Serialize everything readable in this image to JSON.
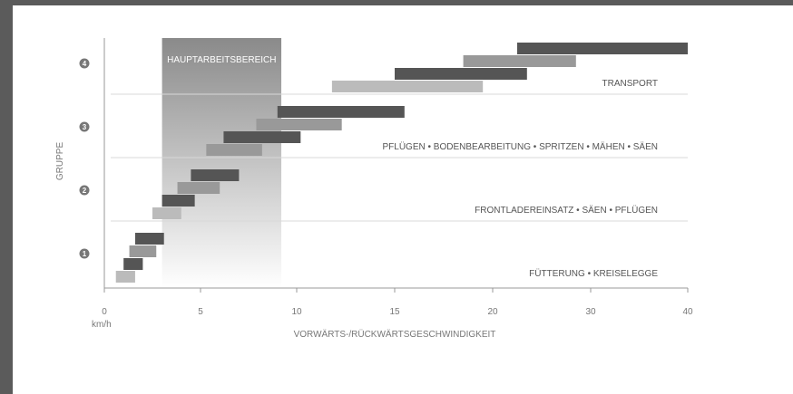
{
  "chart_data": {
    "type": "range-bar",
    "ylabel": "GRUPPE",
    "xlabel": "VORWÄRTS-/RÜCKWÄRTSGESCHWINDIGKEIT",
    "unit": "km/h",
    "xlim": [
      0,
      40
    ],
    "xticks": [
      0,
      5,
      10,
      15,
      20,
      30,
      40
    ],
    "groups": [
      "1",
      "2",
      "3",
      "4"
    ],
    "group_labels": [
      "FÜTTERUNG • KREISELEGGE",
      "FRONTLADEREINSATZ • SÄEN • PFLÜGEN",
      "PFLÜGEN • BODENBEARBEITUNG • SPRITZEN • MÄHEN • SÄEN",
      "TRANSPORT"
    ],
    "highlight": {
      "label": "HAUPTARBEITSBEREICH",
      "x_range": [
        3.0,
        9.2
      ]
    },
    "colors": {
      "light": "#bbbbbb",
      "mid": "#999999",
      "dark": "#555555"
    },
    "bars": [
      {
        "group": 1,
        "level": 0,
        "shade": "light",
        "x": [
          0.6,
          1.6
        ]
      },
      {
        "group": 1,
        "level": 1,
        "shade": "dark",
        "x": [
          1.0,
          2.0
        ]
      },
      {
        "group": 1,
        "level": 2,
        "shade": "mid",
        "x": [
          1.3,
          2.7
        ]
      },
      {
        "group": 1,
        "level": 3,
        "shade": "dark",
        "x": [
          1.6,
          3.1
        ]
      },
      {
        "group": 2,
        "level": 0,
        "shade": "light",
        "x": [
          2.5,
          4.0
        ]
      },
      {
        "group": 2,
        "level": 1,
        "shade": "dark",
        "x": [
          3.0,
          4.7
        ]
      },
      {
        "group": 2,
        "level": 2,
        "shade": "mid",
        "x": [
          3.8,
          6.0
        ]
      },
      {
        "group": 2,
        "level": 3,
        "shade": "dark",
        "x": [
          4.5,
          7.0
        ]
      },
      {
        "group": 3,
        "level": 0,
        "shade": "mid",
        "x": [
          5.3,
          8.2
        ]
      },
      {
        "group": 3,
        "level": 1,
        "shade": "dark",
        "x": [
          6.2,
          10.2
        ]
      },
      {
        "group": 3,
        "level": 2,
        "shade": "mid",
        "x": [
          7.9,
          12.3
        ]
      },
      {
        "group": 3,
        "level": 3,
        "shade": "dark",
        "x": [
          9.0,
          15.5
        ]
      },
      {
        "group": 4,
        "level": 0,
        "shade": "light",
        "x": [
          11.8,
          19.5
        ]
      },
      {
        "group": 4,
        "level": 1,
        "shade": "dark",
        "x": [
          15.0,
          23.5
        ]
      },
      {
        "group": 4,
        "level": 2,
        "shade": "mid",
        "x": [
          18.5,
          28.5
        ]
      },
      {
        "group": 4,
        "level": 3,
        "shade": "dark",
        "x": [
          22.5,
          40.0
        ]
      }
    ]
  }
}
